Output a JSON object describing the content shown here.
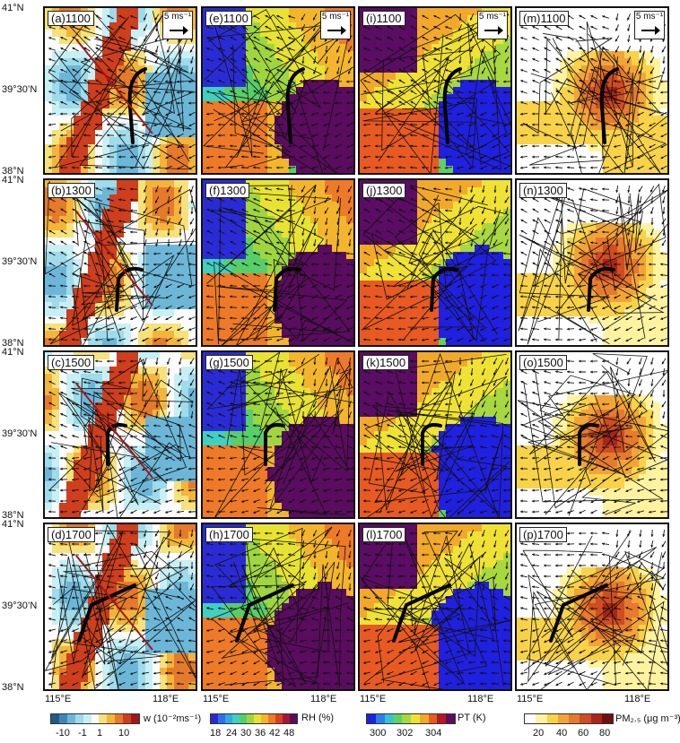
{
  "panels": [
    {
      "label": "(a)1100",
      "field": "w",
      "ref": true,
      "line": "a"
    },
    {
      "label": "(e)1100",
      "field": "rh",
      "ref": true,
      "line": "a"
    },
    {
      "label": "(i)1100",
      "field": "pt",
      "ref": true,
      "line": "a"
    },
    {
      "label": "(m)1100",
      "field": "pm",
      "ref": true,
      "line": "a"
    },
    {
      "label": "(b)1300",
      "field": "w",
      "ref": false,
      "line": "b"
    },
    {
      "label": "(f)1300",
      "field": "rh",
      "ref": false,
      "line": "b"
    },
    {
      "label": "(j)1300",
      "field": "pt",
      "ref": false,
      "line": "b"
    },
    {
      "label": "(n)1300",
      "field": "pm",
      "ref": false,
      "line": "b"
    },
    {
      "label": "(c)1500",
      "field": "w",
      "ref": false,
      "line": "c"
    },
    {
      "label": "(g)1500",
      "field": "rh",
      "ref": false,
      "line": "c"
    },
    {
      "label": "(k)1500",
      "field": "pt",
      "ref": false,
      "line": "c"
    },
    {
      "label": "(o)1500",
      "field": "pm",
      "ref": false,
      "line": "c"
    },
    {
      "label": "(d)1700",
      "field": "w",
      "ref": false,
      "line": "d"
    },
    {
      "label": "(h)1700",
      "field": "rh",
      "ref": false,
      "line": "d"
    },
    {
      "label": "(l)1700",
      "field": "pt",
      "ref": false,
      "line": "d"
    },
    {
      "label": "(p)1700",
      "field": "pm",
      "ref": false,
      "line": "d"
    }
  ],
  "reference_vector": "5 ms⁻¹",
  "lat_labels": [
    "41°N",
    "39°30’N",
    "38°N"
  ],
  "lon_labels": [
    "115°E",
    "118°E"
  ],
  "chart_data": {
    "type": "heatmap",
    "rows_valid_time": [
      "1100",
      "1300",
      "1500",
      "1700"
    ],
    "columns_fields": [
      "w",
      "RH",
      "PT",
      "PM2.5"
    ],
    "lat_range": [
      38.0,
      41.0
    ],
    "lon_range": [
      115.0,
      118.0
    ],
    "colorbars": [
      {
        "id": "w",
        "title": "w (10⁻²ms⁻¹)",
        "ticks": [
          "-10",
          "-1",
          "1",
          "10"
        ],
        "colors": [
          "#1f5a8a",
          "#3e86b8",
          "#6cb7d8",
          "#9fdbea",
          "#c8f0f4",
          "#fbfbfb",
          "#f6e27a",
          "#f4b43a",
          "#e57a2a",
          "#cf3e1d",
          "#a01818"
        ]
      },
      {
        "id": "rh",
        "title": "RH (%)",
        "ticks": [
          "18",
          "24",
          "30",
          "36",
          "42",
          "48"
        ],
        "colors": [
          "#2b2bd6",
          "#2f6fe8",
          "#34a7e6",
          "#3fd0c0",
          "#56cf6a",
          "#9fd640",
          "#e8e332",
          "#f3b52c",
          "#ee7a27",
          "#d8411f",
          "#a31a30",
          "#5a0c5e"
        ]
      },
      {
        "id": "pt",
        "title": "PT (K)",
        "ticks": [
          "300",
          "302",
          "304"
        ],
        "colors": [
          "#2020e0",
          "#2f7ee6",
          "#35c2d6",
          "#5fcf66",
          "#a7d83f",
          "#f0e234",
          "#f2a92b",
          "#e85a22",
          "#b5191f",
          "#5b0c63"
        ]
      },
      {
        "id": "pm",
        "title": "PM₂.₅ (μg m⁻³)",
        "ticks": [
          "20",
          "40",
          "60",
          "80"
        ],
        "colors": [
          "#ffffff",
          "#fff3a0",
          "#f8d34a",
          "#f2a437",
          "#e67a2d",
          "#cf4d22",
          "#a8261a",
          "#6e1010"
        ]
      }
    ]
  }
}
